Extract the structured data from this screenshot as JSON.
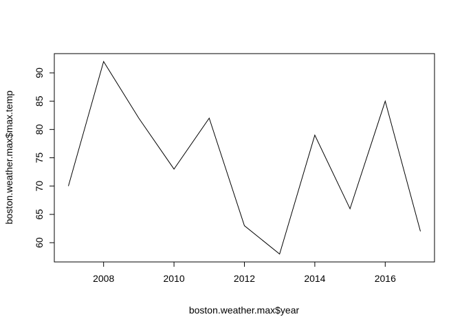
{
  "chart_data": {
    "type": "line",
    "title": "",
    "xlabel": "boston.weather.max$year",
    "ylabel": "boston.weather.max$max.temp",
    "x": [
      2007,
      2008,
      2009,
      2010,
      2011,
      2012,
      2013,
      2014,
      2015,
      2016,
      2017
    ],
    "series": [
      {
        "values": [
          70,
          92,
          82,
          73,
          82,
          63,
          58,
          79,
          66,
          85,
          62
        ]
      }
    ],
    "xlim": [
      2006.6,
      2017.4
    ],
    "ylim": [
      56.6,
      93.4
    ],
    "x_ticks": [
      2008,
      2010,
      2012,
      2014,
      2016
    ],
    "y_ticks": [
      60,
      65,
      70,
      75,
      80,
      85,
      90
    ],
    "x_tick_labels": [
      "2008",
      "2010",
      "2012",
      "2014",
      "2016"
    ],
    "y_tick_labels": [
      "60",
      "65",
      "70",
      "75",
      "80",
      "85",
      "90"
    ],
    "grid": false,
    "legend": "none",
    "line_color": "#000000"
  }
}
